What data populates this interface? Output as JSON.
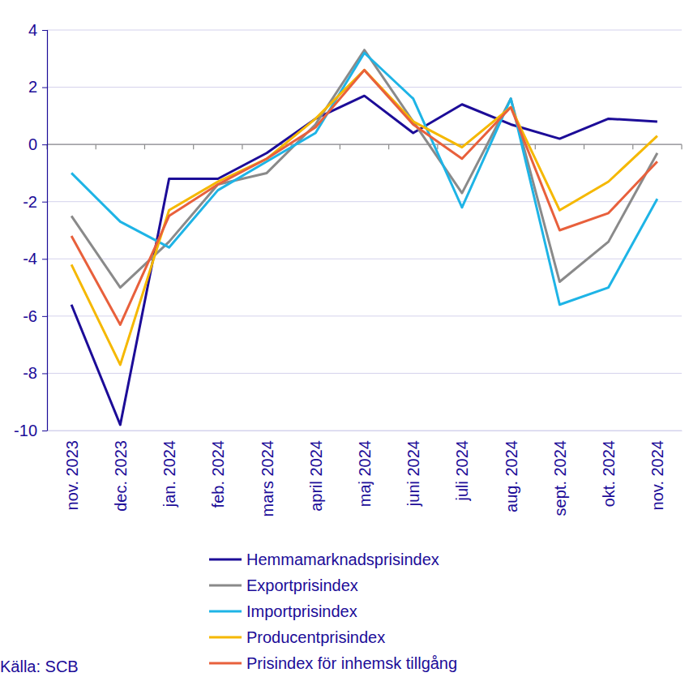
{
  "chart_data": {
    "type": "line",
    "source": "Källa: SCB",
    "categories": [
      "nov. 2023",
      "dec. 2023",
      "jan. 2024",
      "feb. 2024",
      "mars 2024",
      "april 2024",
      "maj 2024",
      "juni 2024",
      "juli 2024",
      "aug. 2024",
      "sept. 2024",
      "okt. 2024",
      "nov. 2024"
    ],
    "series": [
      {
        "name": "Hemmamarknadsprisindex",
        "color": "#1c0c98",
        "values": [
          -5.6,
          -9.8,
          -1.2,
          -1.2,
          -0.3,
          0.9,
          1.7,
          0.4,
          1.4,
          0.7,
          0.2,
          0.9,
          0.8
        ]
      },
      {
        "name": "Exportprisindex",
        "color": "#8a8a8a",
        "values": [
          -2.5,
          -5.0,
          -3.4,
          -1.4,
          -1.0,
          0.7,
          3.3,
          0.8,
          -1.7,
          1.6,
          -4.8,
          -3.4,
          -0.3
        ]
      },
      {
        "name": "Importprisindex",
        "color": "#1eb4e6",
        "values": [
          -1.0,
          -2.7,
          -3.6,
          -1.6,
          -0.6,
          0.4,
          3.2,
          1.6,
          -2.2,
          1.6,
          -5.6,
          -5.0,
          -1.9
        ]
      },
      {
        "name": "Producentprisindex",
        "color": "#f5b800",
        "values": [
          -4.2,
          -7.7,
          -2.3,
          -1.3,
          -0.5,
          0.9,
          2.6,
          0.8,
          -0.1,
          1.3,
          -2.3,
          -1.3,
          0.3
        ]
      },
      {
        "name": "Prisindex för inhemsk tillgång",
        "color": "#e8603c",
        "values": [
          -3.2,
          -6.3,
          -2.5,
          -1.4,
          -0.5,
          0.6,
          2.6,
          0.7,
          -0.5,
          1.3,
          -3.0,
          -2.4,
          -0.6
        ]
      }
    ],
    "ylim": [
      -10,
      4
    ],
    "yticks": [
      -10,
      -8,
      -6,
      -4,
      -2,
      0,
      2,
      4
    ],
    "grid": true,
    "legend": "bottom"
  }
}
